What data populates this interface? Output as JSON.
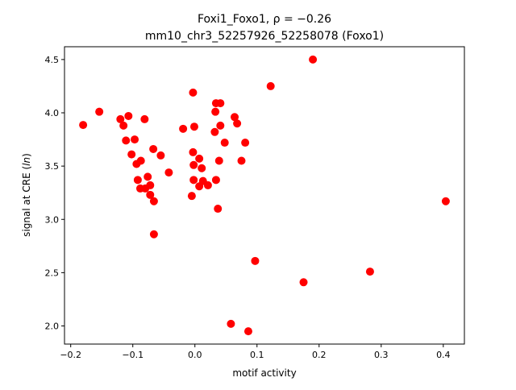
{
  "chart_data": {
    "type": "scatter",
    "title_line1": "Foxi1_Foxo1, ρ = −0.26",
    "title_line2": "mm10_chr3_52257926_52258078 (Foxo1)",
    "xlabel": "motif activity",
    "ylabel_prefix": "signal at CRE (",
    "ylabel_italic": "ln",
    "ylabel_suffix": ")",
    "xlim": [
      -0.21,
      0.434
    ],
    "ylim": [
      1.83,
      4.62
    ],
    "xticks": [
      -0.2,
      -0.1,
      0.0,
      0.1,
      0.2,
      0.3,
      0.4
    ],
    "xtick_labels": [
      "−0.2",
      "−0.1",
      "0.0",
      "0.1",
      "0.2",
      "0.3",
      "0.4"
    ],
    "yticks": [
      2.0,
      2.5,
      3.0,
      3.5,
      4.0,
      4.5
    ],
    "ytick_labels": [
      "2.0",
      "2.5",
      "3.0",
      "3.5",
      "4.0",
      "4.5"
    ],
    "grid": false,
    "marker_color": "#ff0000",
    "points": [
      [
        -0.18,
        3.886
      ],
      [
        -0.154,
        4.01
      ],
      [
        -0.12,
        3.94
      ],
      [
        -0.107,
        3.97
      ],
      [
        -0.081,
        3.94
      ],
      [
        -0.115,
        3.88
      ],
      [
        -0.111,
        3.74
      ],
      [
        -0.097,
        3.75
      ],
      [
        -0.102,
        3.61
      ],
      [
        -0.067,
        3.66
      ],
      [
        -0.055,
        3.6
      ],
      [
        -0.087,
        3.55
      ],
      [
        -0.094,
        3.52
      ],
      [
        -0.042,
        3.44
      ],
      [
        -0.076,
        3.4
      ],
      [
        -0.092,
        3.37
      ],
      [
        -0.072,
        3.32
      ],
      [
        -0.088,
        3.29
      ],
      [
        -0.08,
        3.29
      ],
      [
        -0.072,
        3.23
      ],
      [
        -0.066,
        3.17
      ],
      [
        -0.066,
        2.86
      ],
      [
        -0.003,
        4.19
      ],
      [
        0.034,
        4.09
      ],
      [
        0.041,
        4.09
      ],
      [
        0.033,
        4.01
      ],
      [
        0.064,
        3.96
      ],
      [
        0.068,
        3.9
      ],
      [
        -0.019,
        3.85
      ],
      [
        -0.001,
        3.87
      ],
      [
        0.041,
        3.88
      ],
      [
        0.032,
        3.82
      ],
      [
        0.048,
        3.72
      ],
      [
        0.081,
        3.72
      ],
      [
        -0.003,
        3.63
      ],
      [
        0.007,
        3.57
      ],
      [
        0.039,
        3.55
      ],
      [
        0.075,
        3.55
      ],
      [
        -0.002,
        3.51
      ],
      [
        0.011,
        3.48
      ],
      [
        -0.002,
        3.37
      ],
      [
        0.013,
        3.36
      ],
      [
        0.034,
        3.37
      ],
      [
        0.021,
        3.32
      ],
      [
        0.007,
        3.31
      ],
      [
        -0.005,
        3.22
      ],
      [
        0.037,
        3.1
      ],
      [
        0.19,
        4.5
      ],
      [
        0.122,
        4.25
      ],
      [
        0.404,
        3.17
      ],
      [
        0.097,
        2.61
      ],
      [
        0.175,
        2.41
      ],
      [
        0.282,
        2.51
      ],
      [
        0.058,
        2.02
      ],
      [
        0.086,
        1.95
      ]
    ]
  }
}
